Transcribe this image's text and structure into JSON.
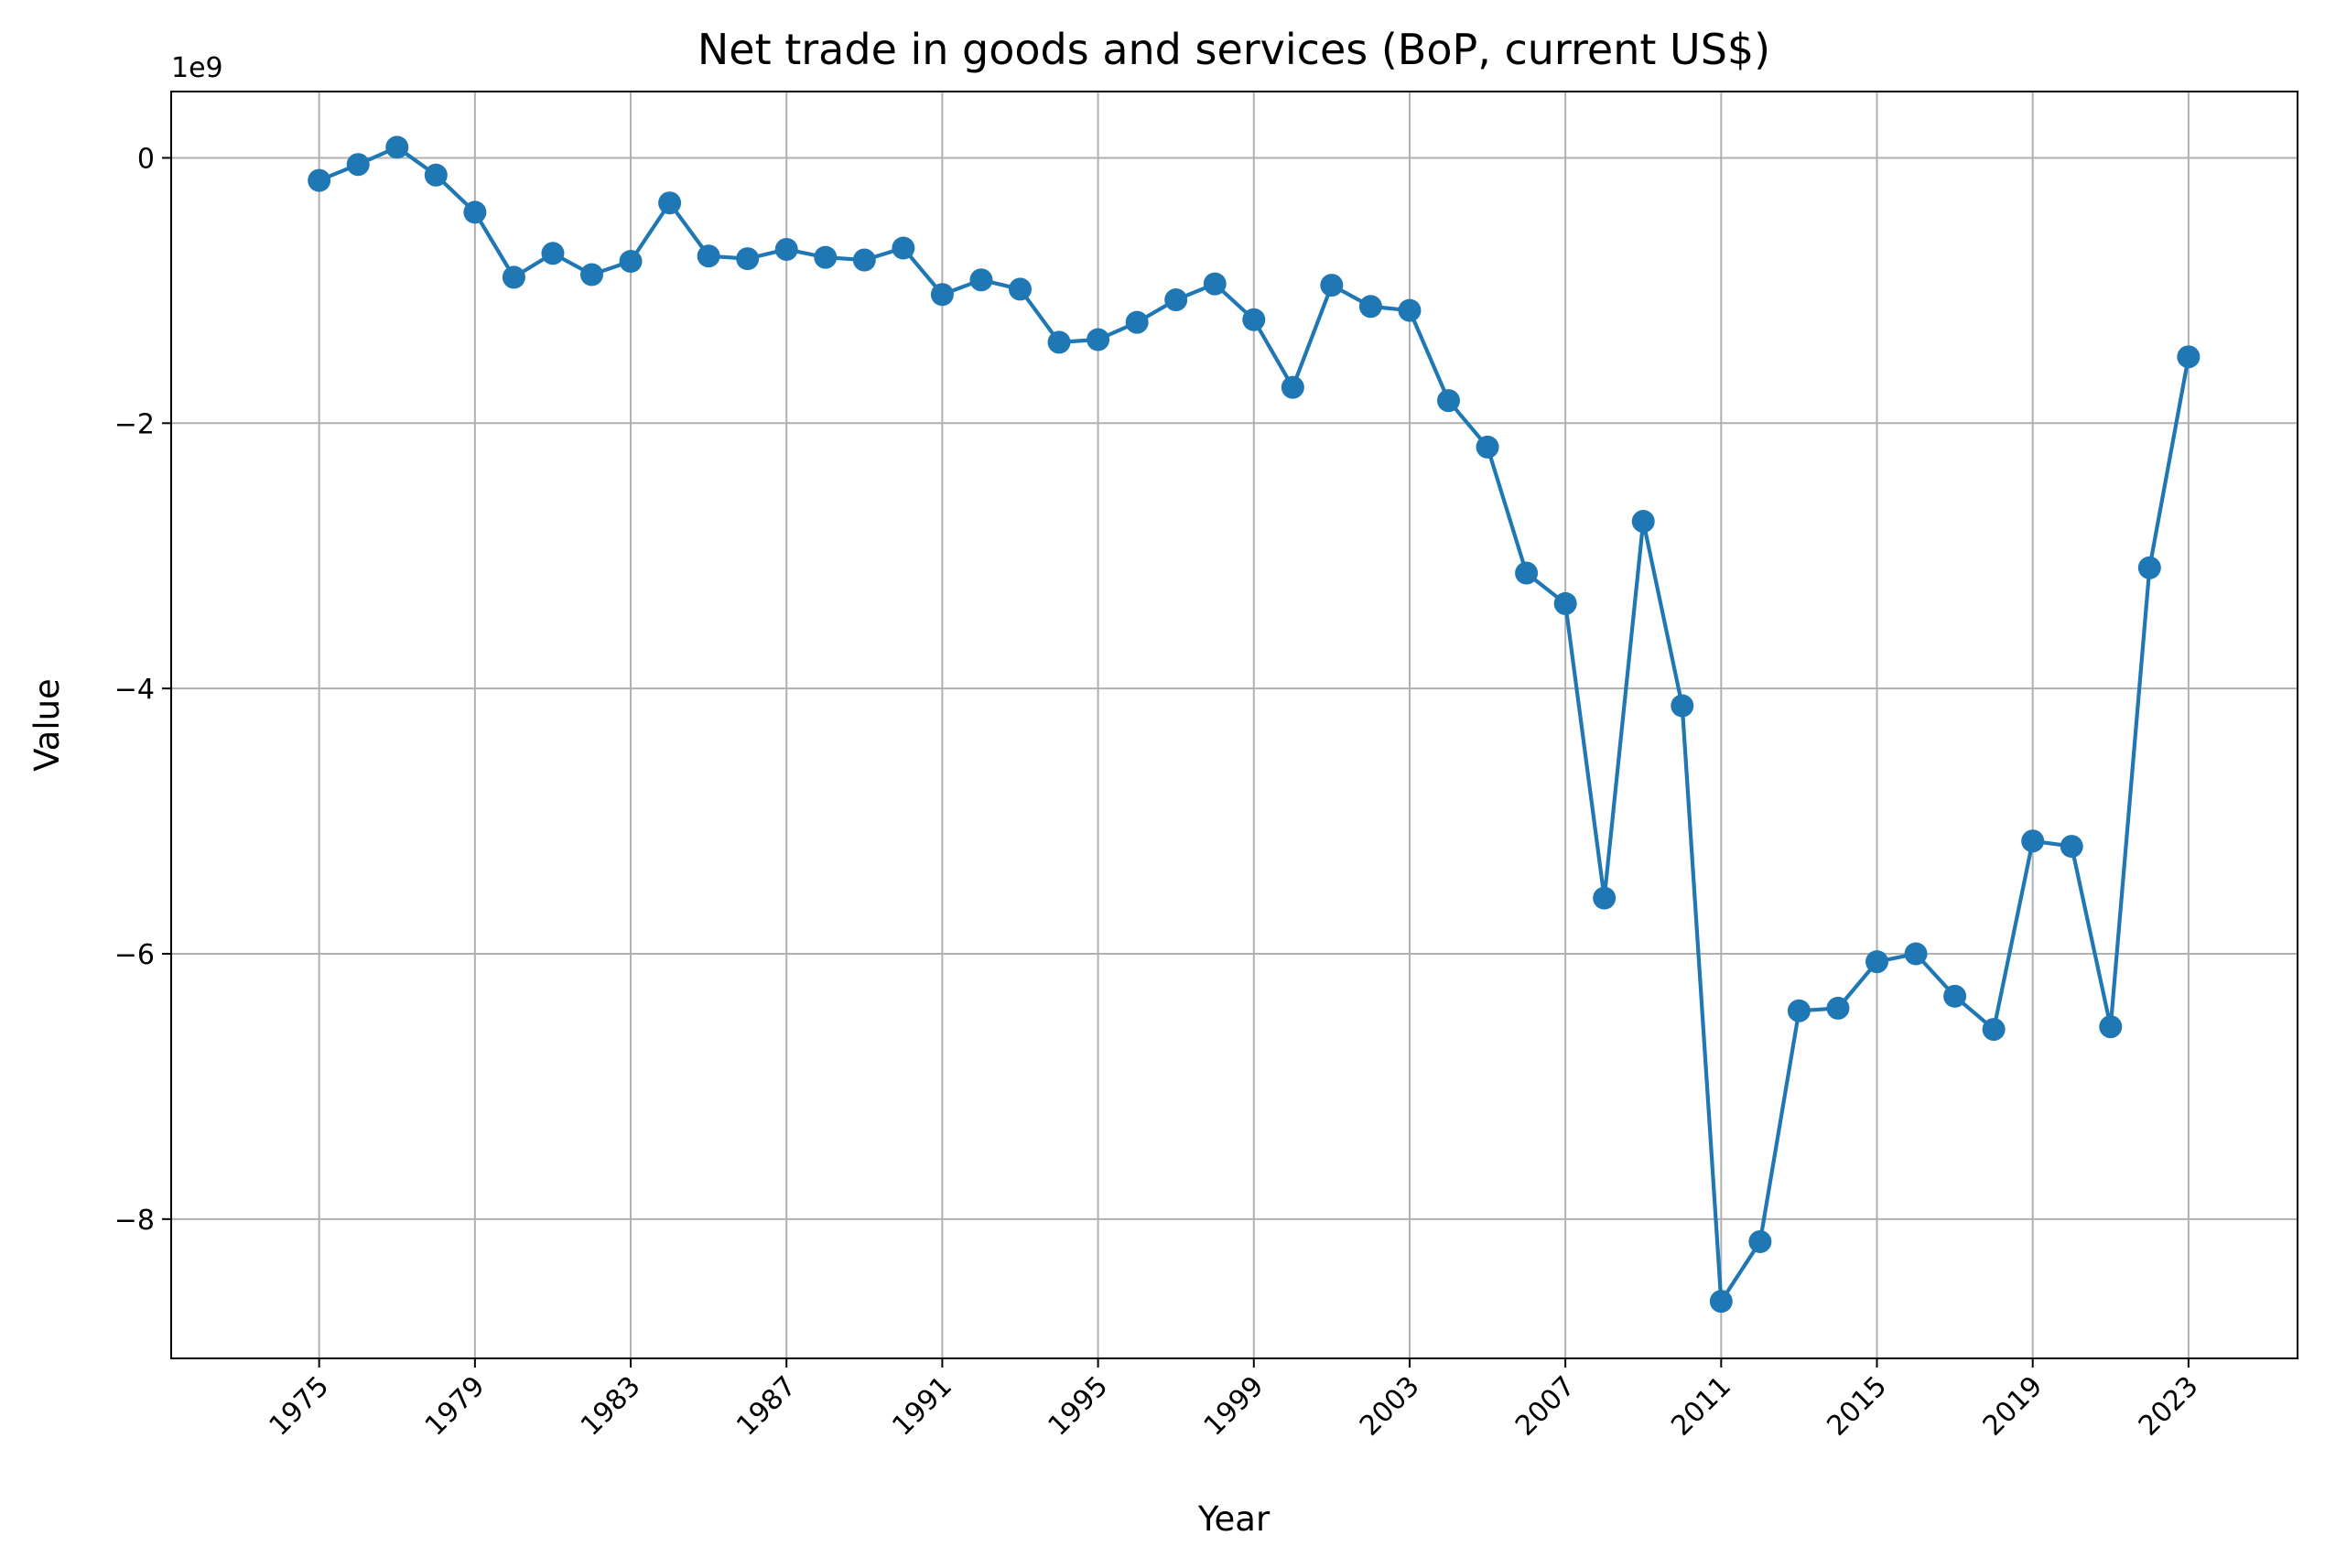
{
  "chart_data": {
    "type": "line",
    "title": "Net trade in goods and services (BoP, current US$)",
    "xlabel": "Year",
    "ylabel": "Value",
    "y_offset_label": "1e9",
    "y_scale": 1000000000,
    "grid": true,
    "xlim": [
      1971.2,
      2025.8
    ],
    "ylim": [
      -9.05,
      0.5
    ],
    "x_ticks": [
      1975,
      1979,
      1983,
      1987,
      1991,
      1995,
      1999,
      2003,
      2007,
      2011,
      2015,
      2019,
      2023
    ],
    "x_tick_labels": [
      "1975",
      "1979",
      "1983",
      "1987",
      "1991",
      "1995",
      "1999",
      "2003",
      "2007",
      "2011",
      "2015",
      "2019",
      "2023"
    ],
    "y_ticks": [
      0,
      -2,
      -4,
      -6,
      -8
    ],
    "y_tick_labels": [
      "0",
      "−2",
      "−4",
      "−6",
      "−8"
    ],
    "color": "#1f77b4",
    "series": [
      {
        "x": [
          1975,
          1976,
          1977,
          1978,
          1979,
          1980,
          1981,
          1982,
          1983,
          1984,
          1985,
          1986,
          1987,
          1988,
          1989,
          1990,
          1991,
          1992,
          1993,
          1994,
          1995,
          1996,
          1997,
          1998,
          1999,
          2000,
          2001,
          2002,
          2003,
          2004,
          2005,
          2006,
          2007,
          2008,
          2009,
          2010,
          2011,
          2012,
          2013,
          2014,
          2015,
          2016,
          2017,
          2018,
          2019,
          2020,
          2021,
          2022,
          2023
        ],
        "y": [
          -0.17,
          -0.05,
          0.08,
          -0.13,
          -0.41,
          -0.9,
          -0.72,
          -0.88,
          -0.78,
          -0.34,
          -0.74,
          -0.76,
          -0.69,
          -0.75,
          -0.77,
          -0.68,
          -1.03,
          -0.92,
          -0.99,
          -1.39,
          -1.37,
          -1.24,
          -1.07,
          -0.95,
          -1.22,
          -1.73,
          -0.96,
          -1.12,
          -1.15,
          -1.83,
          -2.18,
          -3.13,
          -3.36,
          -5.58,
          -2.74,
          -4.13,
          -8.62,
          -8.17,
          -6.43,
          -6.41,
          -6.06,
          -6.0,
          -6.32,
          -6.57,
          -5.15,
          -5.19,
          -6.55,
          -3.09,
          -1.5
        ]
      }
    ]
  }
}
